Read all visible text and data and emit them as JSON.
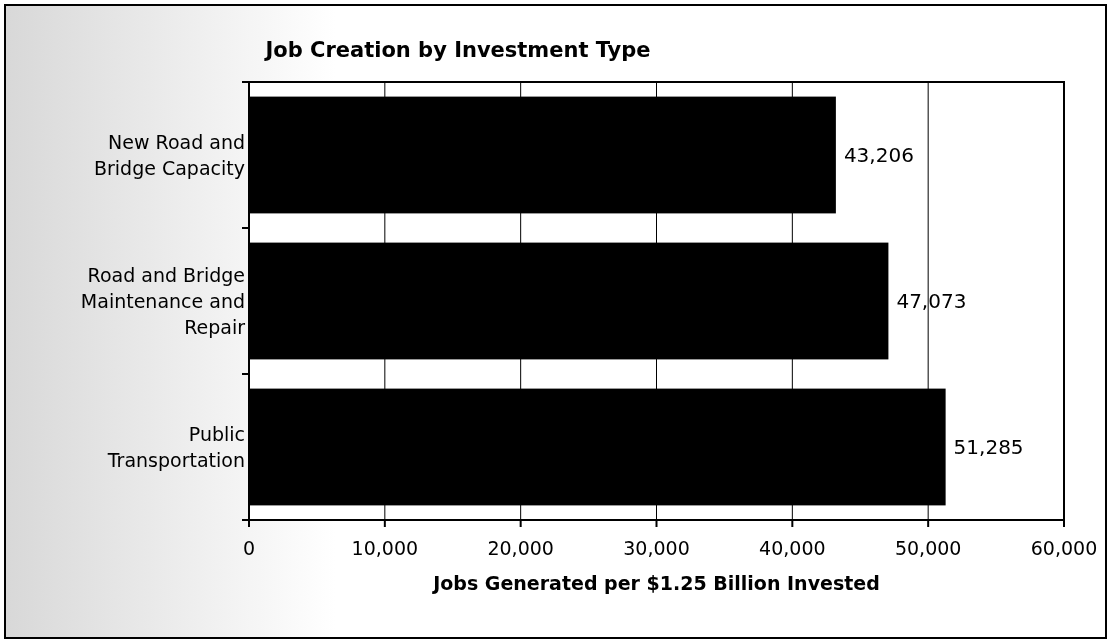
{
  "chart_data": {
    "type": "bar",
    "orientation": "horizontal",
    "title": "Job Creation by Investment Type",
    "xlabel": "Jobs Generated per $1.25 Billion Invested",
    "categories": [
      "New Road and\nBridge Capacity",
      "Road and Bridge\nMaintenance and\nRepair",
      "Public\nTransportation"
    ],
    "values": [
      43206,
      47073,
      51285
    ],
    "color": "#000000",
    "value_labels": [
      "43,206",
      "47,073",
      "51,285"
    ],
    "xlim": [
      0,
      60000
    ],
    "xticks": [
      {
        "value": 0,
        "label": "0"
      },
      {
        "value": 10000,
        "label": "10,000"
      },
      {
        "value": 20000,
        "label": "20,000"
      },
      {
        "value": 30000,
        "label": "30,000"
      },
      {
        "value": 40000,
        "label": "40,000"
      },
      {
        "value": 50000,
        "label": "50,000"
      },
      {
        "value": 60000,
        "label": "60,000"
      }
    ],
    "grid": "x"
  }
}
